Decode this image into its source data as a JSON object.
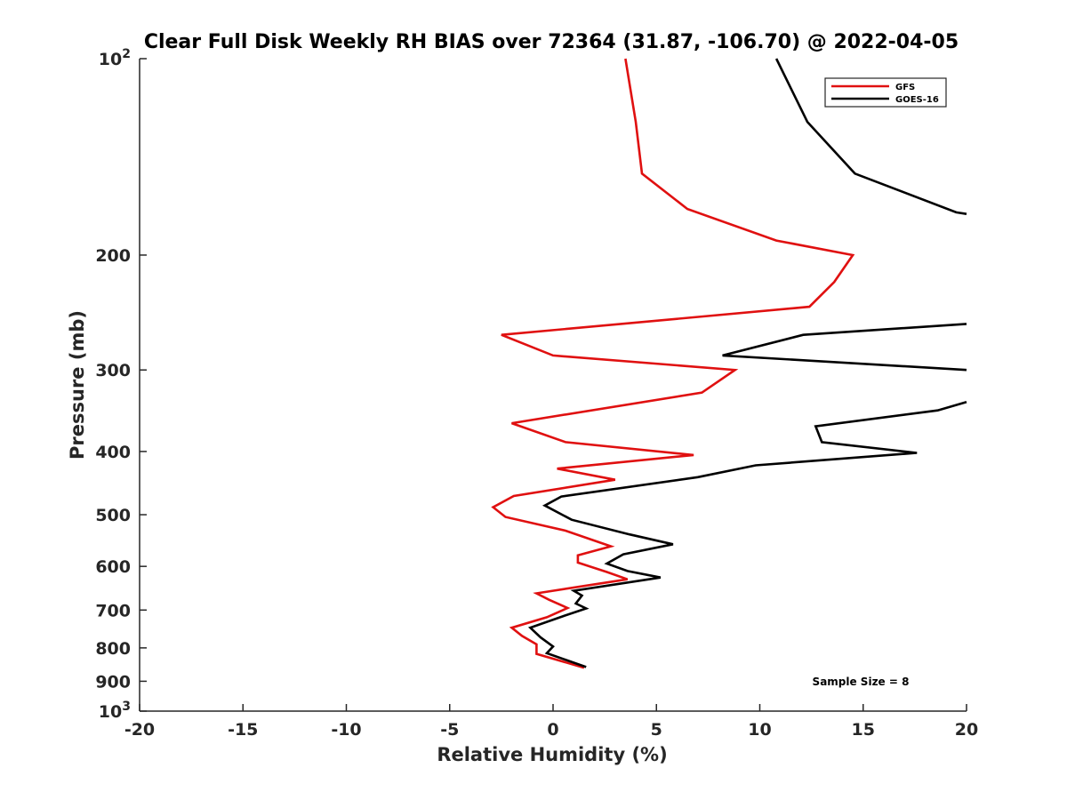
{
  "chart_data": {
    "type": "line",
    "title": "Clear Full Disk Weekly RH BIAS over 72364 (31.87, -106.70) @ 2022-04-05",
    "xlabel": "Relative Humidity (%)",
    "ylabel": "Pressure (mb)",
    "xlim": [
      -20,
      20
    ],
    "ylim": [
      1000,
      100
    ],
    "y_scale": "log",
    "y_reversed": true,
    "grid": false,
    "legend_placement": "top-right",
    "x_ticks": [
      "-20",
      "-15",
      "-10",
      "-5",
      "0",
      "5",
      "10",
      "15",
      "20"
    ],
    "y_ticks": [
      {
        "value": 100,
        "label": "10",
        "exp": "2"
      },
      {
        "value": 200,
        "label": "200"
      },
      {
        "value": 300,
        "label": "300"
      },
      {
        "value": 400,
        "label": "400"
      },
      {
        "value": 500,
        "label": "500"
      },
      {
        "value": 600,
        "label": "600"
      },
      {
        "value": 700,
        "label": "700"
      },
      {
        "value": 800,
        "label": "800"
      },
      {
        "value": 900,
        "label": "900"
      },
      {
        "value": 1000,
        "label": "10",
        "exp": "3"
      }
    ],
    "annotation": "Sample Size = 8",
    "series": [
      {
        "name": "GFS",
        "color": "#e01010",
        "points": [
          [
            3.5,
            100
          ],
          [
            4.0,
            125
          ],
          [
            4.3,
            150
          ],
          [
            6.5,
            170
          ],
          [
            10.8,
            190
          ],
          [
            14.5,
            200
          ],
          [
            13.6,
            220
          ],
          [
            12.4,
            240
          ],
          [
            -2.5,
            265
          ],
          [
            0.0,
            285
          ],
          [
            8.8,
            300
          ],
          [
            7.2,
            325
          ],
          [
            -2.0,
            362
          ],
          [
            0.6,
            387
          ],
          [
            6.8,
            405
          ],
          [
            0.2,
            425
          ],
          [
            3.0,
            442
          ],
          [
            -1.9,
            468
          ],
          [
            -2.9,
            487
          ],
          [
            -2.3,
            504
          ],
          [
            0.6,
            529
          ],
          [
            2.8,
            559
          ],
          [
            1.2,
            577
          ],
          [
            1.2,
            592
          ],
          [
            2.6,
            612
          ],
          [
            3.6,
            628
          ],
          [
            -0.8,
            660
          ],
          [
            -0.2,
            675
          ],
          [
            0.7,
            695
          ],
          [
            -0.3,
            718
          ],
          [
            -2.0,
            745
          ],
          [
            -1.5,
            767
          ],
          [
            -0.8,
            790
          ],
          [
            -0.8,
            817
          ],
          [
            1.5,
            858
          ]
        ]
      },
      {
        "name": "GOES-16",
        "color": "#000000",
        "points": [
          [
            10.8,
            100
          ],
          [
            12.3,
            125
          ],
          [
            14.6,
            150
          ],
          [
            19.5,
            172
          ],
          [
            20,
            173
          ],
          null,
          [
            20,
            255
          ],
          [
            12.1,
            265
          ],
          [
            8.2,
            285
          ],
          [
            20,
            300
          ],
          null,
          [
            20,
            336
          ],
          [
            18.6,
            346
          ],
          [
            12.7,
            366
          ],
          [
            13.0,
            387
          ],
          [
            17.6,
            402
          ],
          [
            9.8,
            420
          ],
          [
            7.0,
            438
          ],
          [
            0.4,
            469
          ],
          [
            -0.4,
            484
          ],
          [
            0.9,
            509
          ],
          [
            3.7,
            536
          ],
          [
            5.8,
            555
          ],
          [
            3.4,
            575
          ],
          [
            2.6,
            594
          ],
          [
            3.6,
            610
          ],
          [
            5.2,
            624
          ],
          [
            1.0,
            654
          ],
          [
            1.4,
            665
          ],
          [
            1.1,
            684
          ],
          [
            1.6,
            696
          ],
          [
            0.5,
            715
          ],
          [
            -1.1,
            745
          ],
          [
            -0.6,
            771
          ],
          [
            0.0,
            796
          ],
          [
            -0.3,
            815
          ],
          [
            1.6,
            856
          ]
        ]
      }
    ]
  }
}
